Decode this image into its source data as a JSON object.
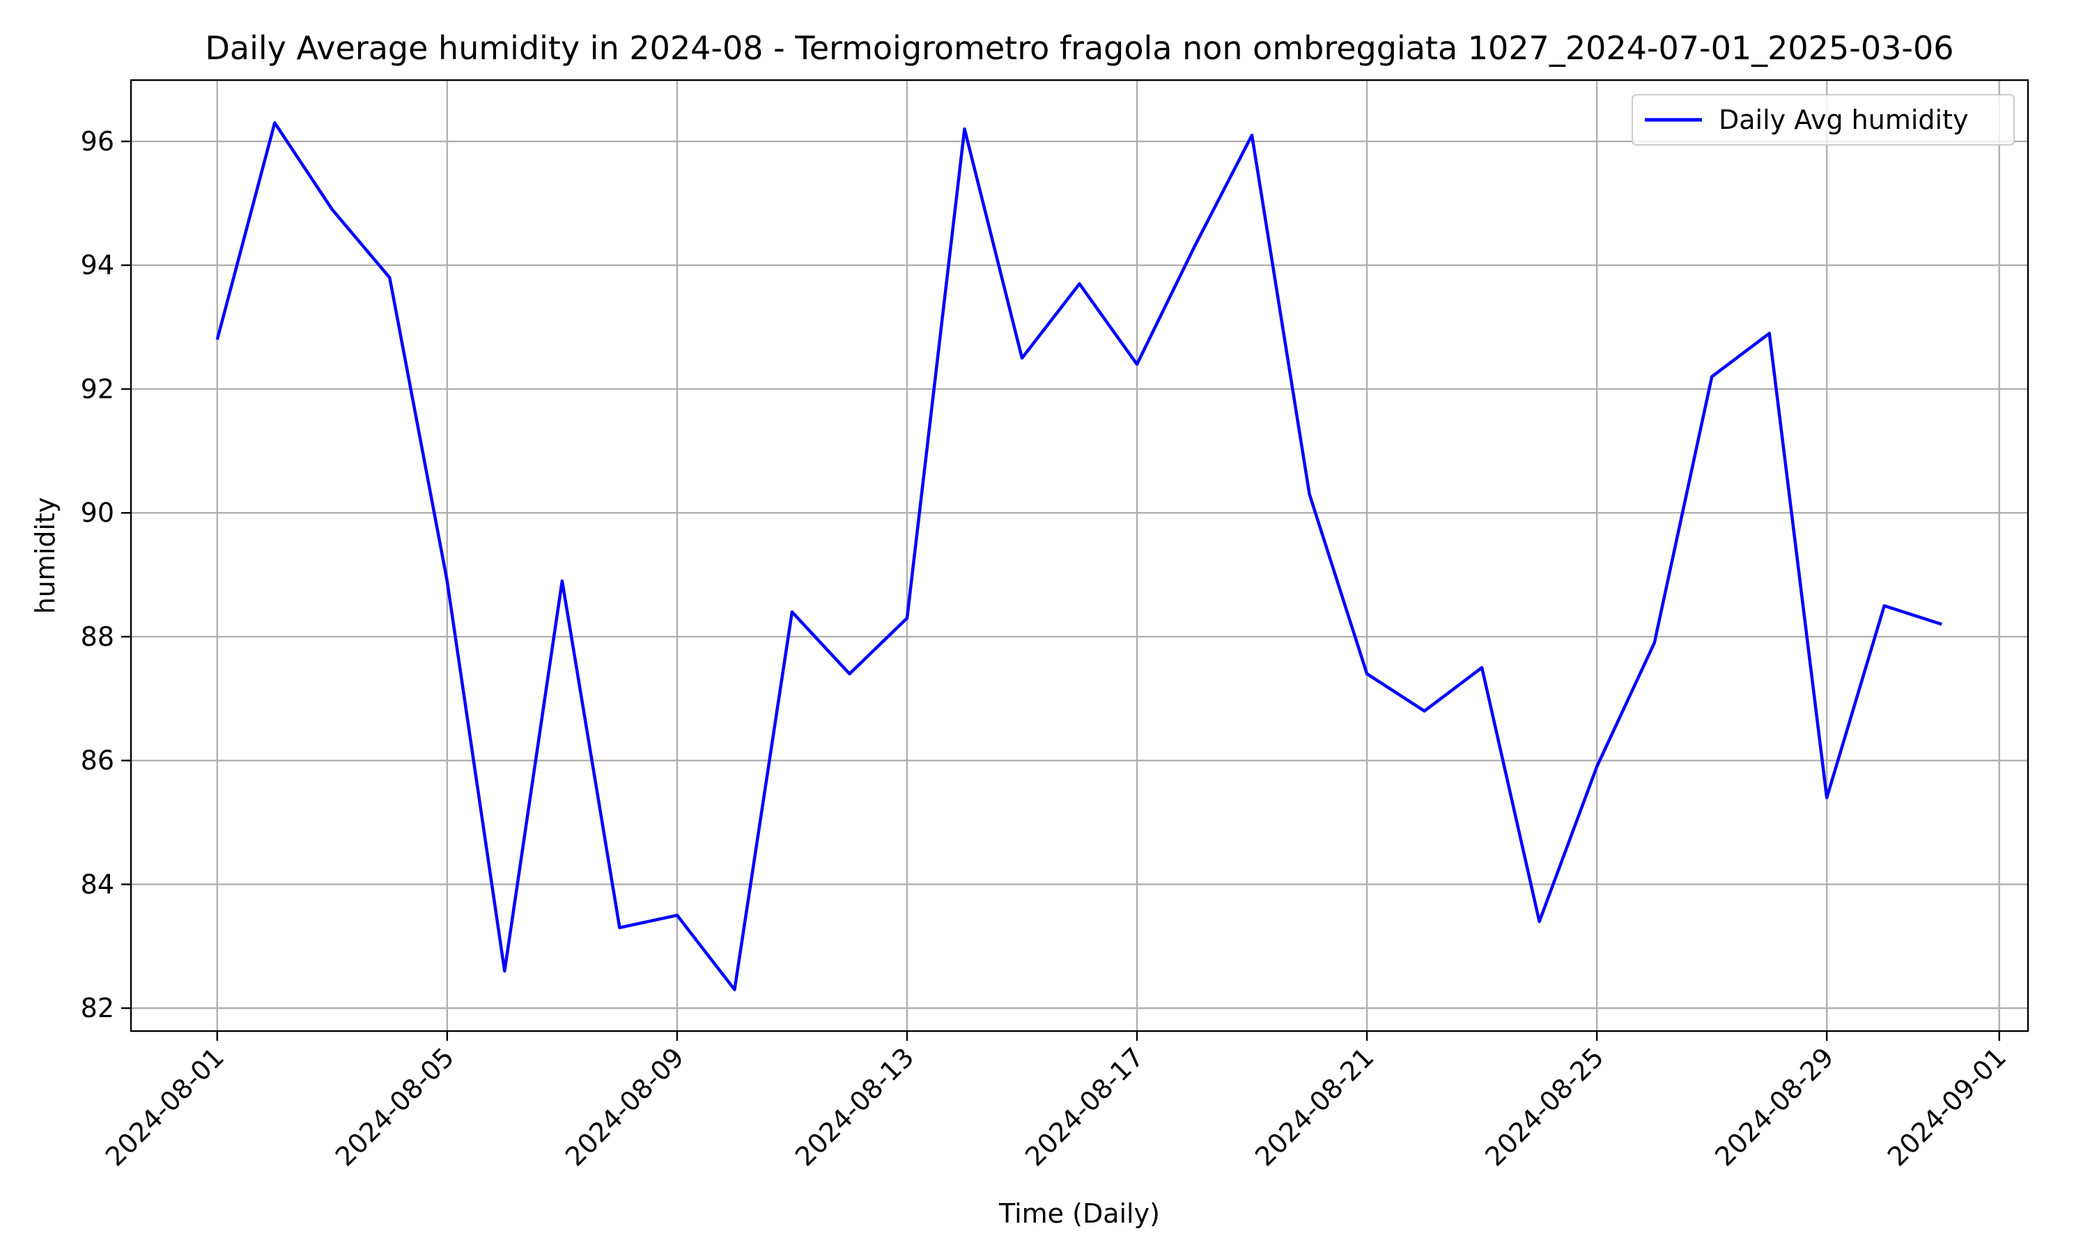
{
  "chart_data": {
    "type": "line",
    "title": "Daily Average humidity in 2024-08 - Termoigrometro fragola non ombreggiata 1027_2024-07-01_2025-03-06",
    "xlabel": "Time (Daily)",
    "ylabel": "humidity",
    "xlim": [
      "2024-07-30T12:00",
      "2024-09-01T12:00"
    ],
    "ylim": [
      81.63,
      96.99
    ],
    "grid": true,
    "legend_position": "top-right",
    "x_ticks": [
      "2024-08-01",
      "2024-08-05",
      "2024-08-09",
      "2024-08-13",
      "2024-08-17",
      "2024-08-21",
      "2024-08-25",
      "2024-08-29",
      "2024-09-01"
    ],
    "y_ticks": [
      82,
      84,
      86,
      88,
      90,
      92,
      94,
      96
    ],
    "series": [
      {
        "name": "Daily Avg humidity",
        "color": "#0000ff",
        "x": [
          "2024-08-01",
          "2024-08-02",
          "2024-08-03",
          "2024-08-04",
          "2024-08-05",
          "2024-08-06",
          "2024-08-07",
          "2024-08-08",
          "2024-08-09",
          "2024-08-10",
          "2024-08-11",
          "2024-08-12",
          "2024-08-13",
          "2024-08-14",
          "2024-08-15",
          "2024-08-16",
          "2024-08-17",
          "2024-08-18",
          "2024-08-19",
          "2024-08-20",
          "2024-08-21",
          "2024-08-22",
          "2024-08-23",
          "2024-08-24",
          "2024-08-25",
          "2024-08-26",
          "2024-08-27",
          "2024-08-28",
          "2024-08-29",
          "2024-08-30",
          "2024-08-31"
        ],
        "values": [
          92.8,
          96.3,
          94.9,
          93.8,
          88.9,
          82.6,
          88.9,
          83.3,
          83.5,
          82.3,
          88.4,
          87.4,
          88.3,
          96.2,
          92.5,
          93.7,
          92.4,
          94.3,
          96.1,
          90.3,
          87.4,
          86.8,
          87.5,
          83.4,
          85.9,
          87.9,
          92.2,
          92.9,
          85.4,
          88.5,
          88.2
        ]
      }
    ]
  }
}
